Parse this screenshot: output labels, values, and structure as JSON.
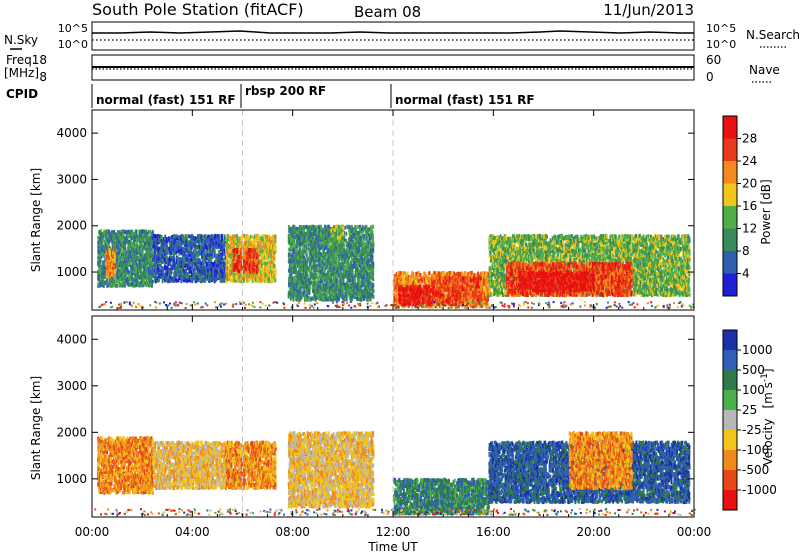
{
  "header": {
    "station": "South Pole Station (fitACF)",
    "beam": "Beam 08",
    "date": "11/Jun/2013"
  },
  "noise_panel": {
    "left_label": "N.Sky",
    "right_label": "N.Search",
    "left_ticks": [
      "10^5",
      "10^0"
    ],
    "right_ticks": [
      "10^5",
      "10^0"
    ]
  },
  "freq_panel": {
    "left_label_top": "Freq.",
    "left_label_bottom": "[MHz]",
    "left_ticks": [
      "18",
      "8"
    ],
    "right_label": "Nave",
    "right_ticks": [
      "60",
      "0"
    ]
  },
  "cpid_panel": {
    "label": "CPID",
    "segments": [
      {
        "label": "normal (fast) 151 RF",
        "start_hour": 0,
        "end_hour": 6
      },
      {
        "label": "rbsp 200 RF",
        "start_hour": 6,
        "end_hour": 12
      },
      {
        "label": "normal (fast) 151 RF",
        "start_hour": 12,
        "end_hour": 24
      }
    ]
  },
  "chart_data": [
    {
      "type": "heatmap",
      "name": "power",
      "ylabel": "Slant Range [km]",
      "yticks": [
        "1000",
        "2000",
        "3000",
        "4000"
      ],
      "ylim": [
        180,
        4500
      ],
      "xlim": [
        0,
        24
      ],
      "colorbar_label": "Power [dB]",
      "colorbar_ticks": [
        "4",
        "8",
        "12",
        "16",
        "20",
        "24",
        "28"
      ],
      "colorbar_colors": [
        "#1f1fd8",
        "#2e5fb0",
        "#3a8a5a",
        "#4fb04a",
        "#f0c61a",
        "#f48a1e",
        "#e83a1a",
        "#e81010"
      ],
      "echo_regions": [
        {
          "t_start": 0.2,
          "t_end": 2.4,
          "range_low": 700,
          "range_high": 1900,
          "level": 2
        },
        {
          "t_start": 0.5,
          "t_end": 0.9,
          "range_low": 900,
          "range_high": 1500,
          "level": 5
        },
        {
          "t_start": 2.4,
          "t_end": 5.3,
          "range_low": 800,
          "range_high": 1800,
          "level": 1
        },
        {
          "t_start": 5.3,
          "t_end": 7.3,
          "range_low": 800,
          "range_high": 1800,
          "level": 4
        },
        {
          "t_start": 5.6,
          "t_end": 6.6,
          "range_low": 1000,
          "range_high": 1500,
          "level": 6
        },
        {
          "t_start": 7.8,
          "t_end": 11.2,
          "range_low": 400,
          "range_high": 2000,
          "level": 2
        },
        {
          "t_start": 9.5,
          "t_end": 10.0,
          "range_low": 1600,
          "range_high": 2000,
          "level": 3
        },
        {
          "t_start": 12.0,
          "t_end": 15.8,
          "range_low": 250,
          "range_high": 1000,
          "level": 5
        },
        {
          "t_start": 12.2,
          "t_end": 13.5,
          "range_low": 300,
          "range_high": 700,
          "level": 7
        },
        {
          "t_start": 13.5,
          "t_end": 15.5,
          "range_low": 300,
          "range_high": 900,
          "level": 6
        },
        {
          "t_start": 15.8,
          "t_end": 23.8,
          "range_low": 500,
          "range_high": 1800,
          "level": 3
        },
        {
          "t_start": 16.5,
          "t_end": 21.5,
          "range_low": 500,
          "range_high": 1200,
          "level": 6
        },
        {
          "t_start": 17.0,
          "t_end": 20.0,
          "range_low": 600,
          "range_high": 1000,
          "level": 7
        }
      ]
    },
    {
      "type": "heatmap",
      "name": "velocity",
      "ylabel": "Slant Range [km]",
      "yticks": [
        "1000",
        "2000",
        "3000",
        "4000"
      ],
      "ylim": [
        180,
        4500
      ],
      "xlim": [
        0,
        24
      ],
      "xticks": [
        "00:00",
        "04:00",
        "08:00",
        "12:00",
        "16:00",
        "20:00",
        "00:00"
      ],
      "xlabel": "Time UT",
      "colorbar_label_main": "Velocity",
      "colorbar_label_unit": "[m s",
      "colorbar_label_exp": "-1",
      "colorbar_label_close": "]",
      "colorbar_ticks": [
        "1000",
        "500",
        "100",
        "25",
        "-25",
        "-100",
        "-500",
        "-1000"
      ],
      "colorbar_colors": [
        "#1d2fa8",
        "#2f5fb8",
        "#2e7a4a",
        "#4cb04a",
        "#b8b8b8",
        "#f0c61a",
        "#f08a1e",
        "#e84818",
        "#e81010"
      ],
      "echo_regions": [
        {
          "t_start": 0.2,
          "t_end": 2.4,
          "range_low": 700,
          "range_high": 1900,
          "level": 6
        },
        {
          "t_start": 2.4,
          "t_end": 5.3,
          "range_low": 800,
          "range_high": 1800,
          "level": 5
        },
        {
          "t_start": 5.3,
          "t_end": 7.3,
          "range_low": 800,
          "range_high": 1800,
          "level": 6
        },
        {
          "t_start": 7.8,
          "t_end": 11.2,
          "range_low": 400,
          "range_high": 2000,
          "level": 5
        },
        {
          "t_start": 12.0,
          "t_end": 15.8,
          "range_low": 250,
          "range_high": 1000,
          "level": 2
        },
        {
          "t_start": 15.8,
          "t_end": 23.8,
          "range_low": 500,
          "range_high": 1800,
          "level": 1
        },
        {
          "t_start": 19.0,
          "t_end": 21.5,
          "range_low": 800,
          "range_high": 2000,
          "level": 6
        }
      ]
    }
  ]
}
